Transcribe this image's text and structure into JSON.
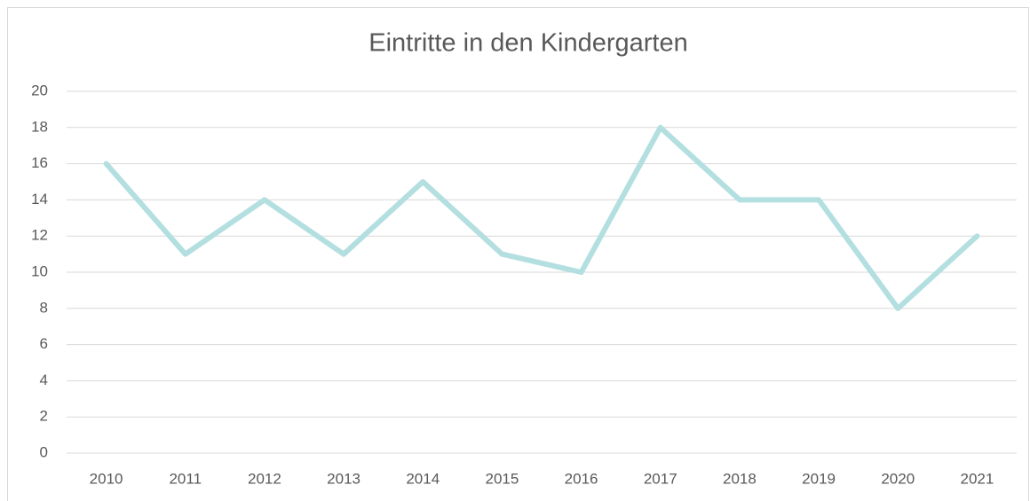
{
  "chart_data": {
    "type": "line",
    "title": "Eintritte in den Kindergarten",
    "categories": [
      "2010",
      "2011",
      "2012",
      "2013",
      "2014",
      "2015",
      "2016",
      "2017",
      "2018",
      "2019",
      "2020",
      "2021"
    ],
    "values": [
      16,
      11,
      14,
      11,
      15,
      11,
      10,
      18,
      14,
      14,
      8,
      12
    ],
    "color": "#b4dfe0",
    "ylim": [
      0,
      20
    ],
    "yticks": [
      0,
      2,
      4,
      6,
      8,
      10,
      12,
      14,
      16,
      18,
      20
    ],
    "grid": true
  }
}
